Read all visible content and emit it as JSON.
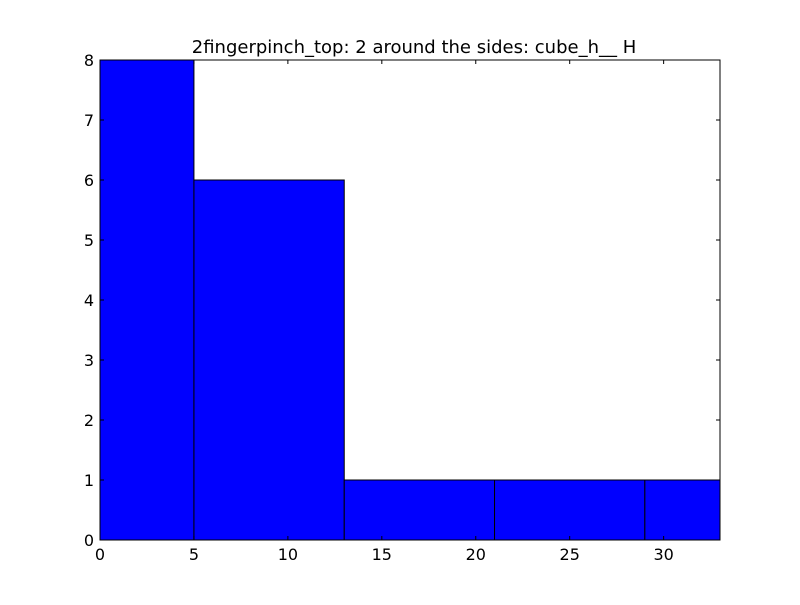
{
  "chart_data": {
    "type": "bar",
    "title": "2fingerpinch_top: 2 around the sides: cube_h__ H",
    "xlabel": "",
    "ylabel": "",
    "bins": [
      {
        "x0": 0,
        "x1": 5,
        "count": 8
      },
      {
        "x0": 5,
        "x1": 13,
        "count": 6
      },
      {
        "x0": 13,
        "x1": 21,
        "count": 1
      },
      {
        "x0": 21,
        "x1": 29,
        "count": 1
      },
      {
        "x0": 29,
        "x1": 33,
        "count": 1
      }
    ],
    "xlim": [
      0,
      33
    ],
    "ylim": [
      0,
      8
    ],
    "xticks": [
      0,
      5,
      10,
      15,
      20,
      25,
      30
    ],
    "yticks": [
      0,
      1,
      2,
      3,
      4,
      5,
      6,
      7,
      8
    ],
    "grid": false,
    "bar_color": "#0000ff",
    "edge_color": "#000000"
  }
}
